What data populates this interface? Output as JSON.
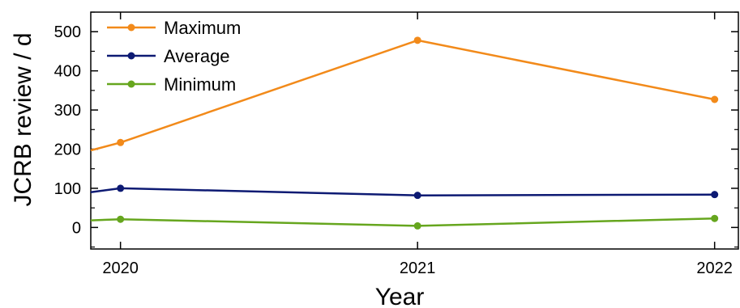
{
  "chart_data": {
    "type": "line",
    "x": [
      2019.9,
      2020,
      2021,
      2022
    ],
    "series": [
      {
        "name": "Maximum",
        "values": [
          197,
          217,
          478,
          327
        ],
        "color": "#f28a1a"
      },
      {
        "name": "Average",
        "values": [
          90,
          100,
          82,
          84
        ],
        "color": "#0d1a73"
      },
      {
        "name": "Minimum",
        "values": [
          18,
          21,
          4,
          23
        ],
        "color": "#66a61e"
      }
    ],
    "xticks": [
      2020,
      2021,
      2022
    ],
    "xtick_labels": [
      "2020",
      "2021",
      "2022"
    ],
    "yticks": [
      0,
      100,
      200,
      300,
      400,
      500
    ],
    "ytick_labels": [
      "0",
      "100",
      "200",
      "300",
      "400",
      "500"
    ],
    "xlabel": "Year",
    "ylabel": "JCRB review / d",
    "xlim": [
      2019.9,
      2022.08
    ],
    "ylim": [
      -55,
      550
    ],
    "grid": false,
    "legend_position": "top-left",
    "title": ""
  }
}
